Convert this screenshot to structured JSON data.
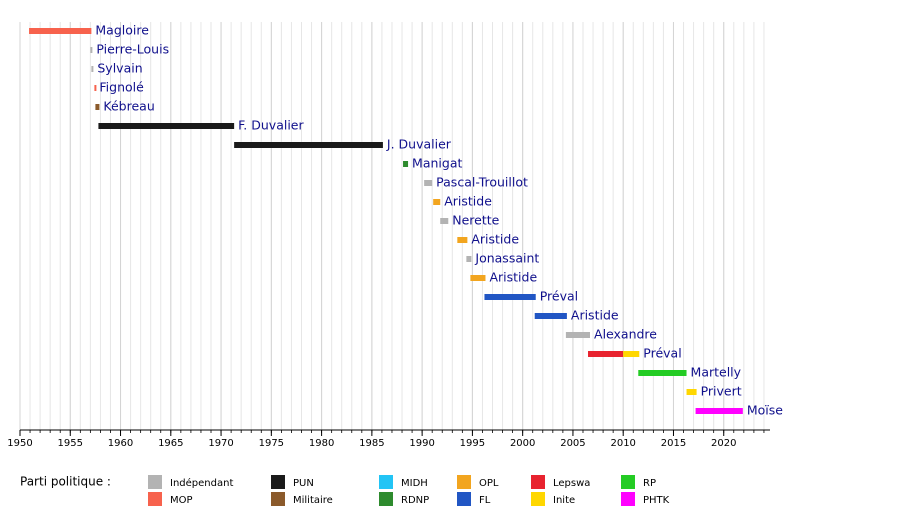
{
  "chart_data": {
    "type": "timeline",
    "xlim": [
      1950,
      2025
    ],
    "xticks": [
      1950,
      1955,
      1960,
      1965,
      1970,
      1975,
      1980,
      1985,
      1990,
      1995,
      2000,
      2005,
      2010,
      2015,
      2020
    ],
    "minor_grid": true,
    "legend_title": "Parti politique :",
    "parties": [
      {
        "name": "Indépendant",
        "color": "#b3b3b3"
      },
      {
        "name": "MOP",
        "color": "#f7624d"
      },
      {
        "name": "PUN",
        "color": "#1a1a1a"
      },
      {
        "name": "Militaire",
        "color": "#8b5a2b"
      },
      {
        "name": "MIDH",
        "color": "#22c4f5"
      },
      {
        "name": "RDNP",
        "color": "#2e8b2e"
      },
      {
        "name": "OPL",
        "color": "#f2a51f"
      },
      {
        "name": "FL",
        "color": "#2156c4"
      },
      {
        "name": "Lepswa",
        "color": "#e8232f"
      },
      {
        "name": "Inite",
        "color": "#ffd700"
      },
      {
        "name": "RP",
        "color": "#24cc24"
      },
      {
        "name": "PHTK",
        "color": "#ff00ff"
      }
    ],
    "rows": [
      {
        "label": "Magloire",
        "segments": [
          {
            "start": 1950.9,
            "end": 1957.1,
            "party": "MOP"
          }
        ]
      },
      {
        "label": "Pierre-Louis",
        "segments": [
          {
            "start": 1957.0,
            "end": 1957.2,
            "party": "Indépendant"
          }
        ]
      },
      {
        "label": "Sylvain",
        "segments": [
          {
            "start": 1957.1,
            "end": 1957.3,
            "party": "Indépendant"
          }
        ]
      },
      {
        "label": "Fignolé",
        "segments": [
          {
            "start": 1957.4,
            "end": 1957.5,
            "party": "MOP"
          }
        ]
      },
      {
        "label": "Kébreau",
        "segments": [
          {
            "start": 1957.5,
            "end": 1957.9,
            "party": "Militaire"
          }
        ]
      },
      {
        "label": "F. Duvalier",
        "segments": [
          {
            "start": 1957.8,
            "end": 1971.3,
            "party": "PUN"
          }
        ]
      },
      {
        "label": "J. Duvalier",
        "segments": [
          {
            "start": 1971.3,
            "end": 1986.1,
            "party": "PUN"
          }
        ]
      },
      {
        "label": "Manigat",
        "segments": [
          {
            "start": 1988.1,
            "end": 1988.6,
            "party": "RDNP"
          }
        ]
      },
      {
        "label": "Pascal-Trouillot",
        "segments": [
          {
            "start": 1990.2,
            "end": 1991.0,
            "party": "Indépendant"
          }
        ]
      },
      {
        "label": "Aristide",
        "segments": [
          {
            "start": 1991.1,
            "end": 1991.8,
            "party": "OPL"
          }
        ]
      },
      {
        "label": "Nerette",
        "segments": [
          {
            "start": 1991.8,
            "end": 1992.6,
            "party": "Indépendant"
          }
        ]
      },
      {
        "label": "Aristide",
        "segments": [
          {
            "start": 1993.5,
            "end": 1994.5,
            "party": "OPL"
          }
        ]
      },
      {
        "label": "Jonassaint",
        "segments": [
          {
            "start": 1994.4,
            "end": 1994.9,
            "party": "Indépendant"
          }
        ]
      },
      {
        "label": "Aristide",
        "segments": [
          {
            "start": 1994.8,
            "end": 1996.3,
            "party": "OPL"
          }
        ]
      },
      {
        "label": "Préval",
        "segments": [
          {
            "start": 1996.2,
            "end": 2001.3,
            "party": "FL"
          }
        ]
      },
      {
        "label": "Aristide",
        "segments": [
          {
            "start": 2001.2,
            "end": 2004.4,
            "party": "FL"
          }
        ]
      },
      {
        "label": "Alexandre",
        "segments": [
          {
            "start": 2004.3,
            "end": 2006.7,
            "party": "Indépendant"
          }
        ]
      },
      {
        "label": "Préval",
        "segments": [
          {
            "start": 2006.5,
            "end": 2010.0,
            "party": "Lepswa"
          },
          {
            "start": 2010.0,
            "end": 2011.6,
            "party": "Inite"
          }
        ]
      },
      {
        "label": "Martelly",
        "segments": [
          {
            "start": 2011.5,
            "end": 2016.3,
            "party": "RP"
          }
        ]
      },
      {
        "label": "Privert",
        "segments": [
          {
            "start": 2016.3,
            "end": 2017.3,
            "party": "Inite"
          }
        ]
      },
      {
        "label": "Moïse",
        "segments": [
          {
            "start": 2017.2,
            "end": 2021.9,
            "party": "PHTK"
          }
        ]
      }
    ]
  }
}
